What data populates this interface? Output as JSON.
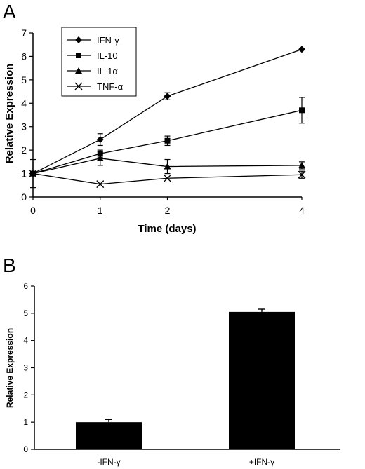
{
  "chart_data": [
    {
      "panel": "A",
      "type": "line",
      "xlabel": "Time (days)",
      "ylabel": "Relative Expression",
      "x": [
        0,
        1,
        2,
        4
      ],
      "xticks": [
        "0",
        "1",
        "2",
        "4"
      ],
      "ylim": [
        0,
        7
      ],
      "yticks": [
        "0",
        "1",
        "2",
        "3",
        "4",
        "5",
        "6",
        "7"
      ],
      "legend_position": "top-left",
      "grid": false,
      "series": [
        {
          "name": "IFN-γ",
          "marker": "diamond",
          "values": [
            1.0,
            2.45,
            4.3,
            6.3
          ],
          "errors": [
            0,
            0.25,
            0.15,
            0
          ]
        },
        {
          "name": "IL-10",
          "marker": "square",
          "values": [
            1.0,
            1.85,
            2.4,
            3.7
          ],
          "errors": [
            0,
            0.15,
            0.2,
            0.55
          ]
        },
        {
          "name": "IL-1α",
          "marker": "triangle",
          "values": [
            1.0,
            1.65,
            1.3,
            1.35
          ],
          "errors": [
            0,
            0.3,
            0.3,
            0.15
          ]
        },
        {
          "name": "TNF-α",
          "marker": "x",
          "values": [
            1.0,
            0.55,
            0.8,
            0.95
          ],
          "errors": [
            0.6,
            0,
            0,
            0.15
          ]
        }
      ]
    },
    {
      "panel": "B",
      "type": "bar",
      "categories": [
        "-IFN-γ",
        "+IFN-γ"
      ],
      "values": [
        1.0,
        5.05
      ],
      "errors": [
        0.1,
        0.1
      ],
      "ylabel": "Relative Expression",
      "xlabel": "",
      "ylim": [
        0,
        6
      ],
      "yticks": [
        "0",
        "1",
        "2",
        "3",
        "4",
        "5",
        "6"
      ],
      "grid": false,
      "bar_color": "#000000"
    }
  ]
}
